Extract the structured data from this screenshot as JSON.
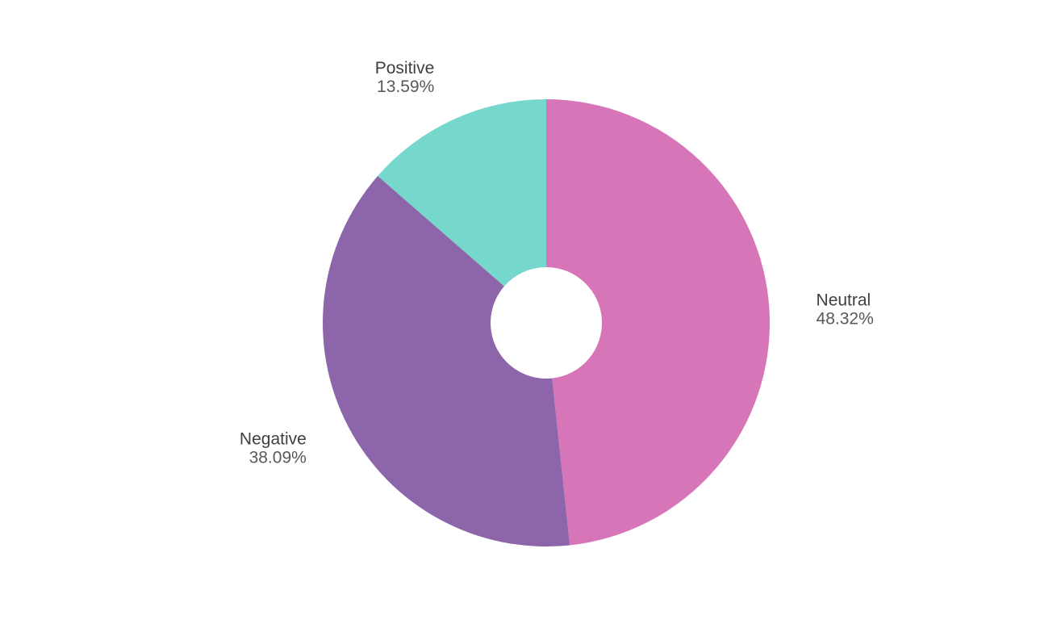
{
  "chart_data": {
    "type": "pie",
    "donut": true,
    "title": "",
    "slices": [
      {
        "label": "Neutral",
        "value": 48.32,
        "display": "48.32%",
        "color": "#d676b8"
      },
      {
        "label": "Negative",
        "value": 38.09,
        "display": "38.09%",
        "color": "#8c65ab"
      },
      {
        "label": "Positive",
        "value": 13.59,
        "display": "13.59%",
        "color": "#76d8cc"
      }
    ],
    "legend": "none",
    "label_placement": "outside"
  }
}
